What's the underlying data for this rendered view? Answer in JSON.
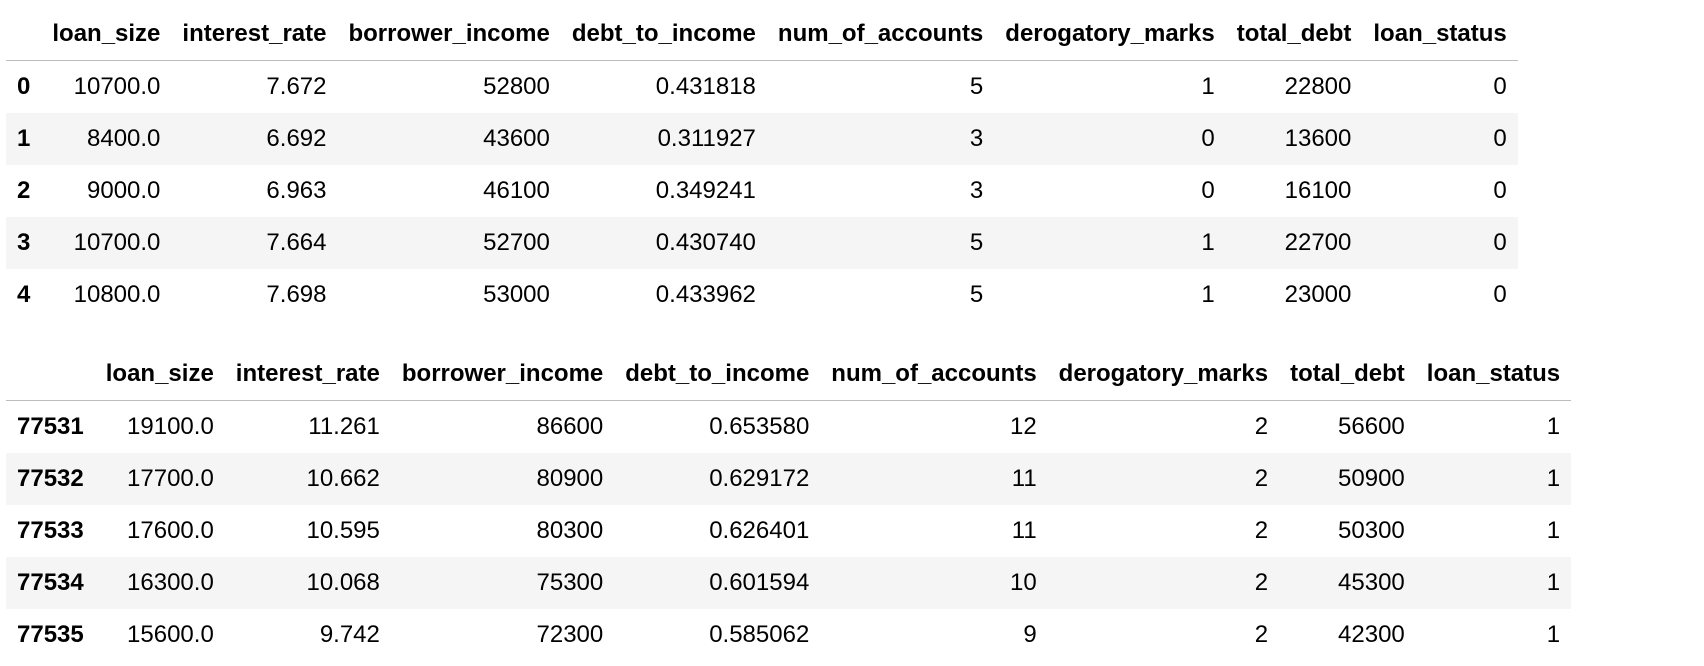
{
  "columns": [
    "loan_size",
    "interest_rate",
    "borrower_income",
    "debt_to_income",
    "num_of_accounts",
    "derogatory_marks",
    "total_debt",
    "loan_status"
  ],
  "head": {
    "rows": [
      {
        "index": "0",
        "cells": [
          "10700.0",
          "7.672",
          "52800",
          "0.431818",
          "5",
          "1",
          "22800",
          "0"
        ]
      },
      {
        "index": "1",
        "cells": [
          "8400.0",
          "6.692",
          "43600",
          "0.311927",
          "3",
          "0",
          "13600",
          "0"
        ]
      },
      {
        "index": "2",
        "cells": [
          "9000.0",
          "6.963",
          "46100",
          "0.349241",
          "3",
          "0",
          "16100",
          "0"
        ]
      },
      {
        "index": "3",
        "cells": [
          "10700.0",
          "7.664",
          "52700",
          "0.430740",
          "5",
          "1",
          "22700",
          "0"
        ]
      },
      {
        "index": "4",
        "cells": [
          "10800.0",
          "7.698",
          "53000",
          "0.433962",
          "5",
          "1",
          "23000",
          "0"
        ]
      }
    ]
  },
  "tail": {
    "rows": [
      {
        "index": "77531",
        "cells": [
          "19100.0",
          "11.261",
          "86600",
          "0.653580",
          "12",
          "2",
          "56600",
          "1"
        ]
      },
      {
        "index": "77532",
        "cells": [
          "17700.0",
          "10.662",
          "80900",
          "0.629172",
          "11",
          "2",
          "50900",
          "1"
        ]
      },
      {
        "index": "77533",
        "cells": [
          "17600.0",
          "10.595",
          "80300",
          "0.626401",
          "11",
          "2",
          "50300",
          "1"
        ]
      },
      {
        "index": "77534",
        "cells": [
          "16300.0",
          "10.068",
          "75300",
          "0.601594",
          "10",
          "2",
          "45300",
          "1"
        ]
      },
      {
        "index": "77535",
        "cells": [
          "15600.0",
          "9.742",
          "72300",
          "0.585062",
          "9",
          "2",
          "42300",
          "1"
        ]
      }
    ]
  }
}
